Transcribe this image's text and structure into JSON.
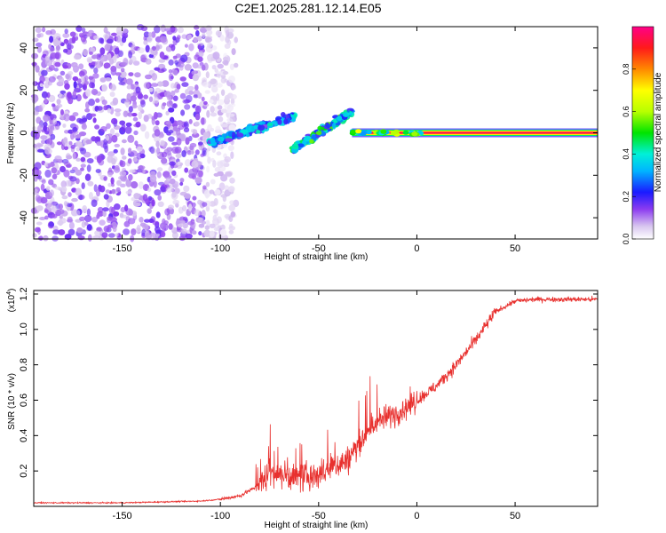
{
  "figure_title": "C2E1.2025.281.12.14.E05",
  "colors": {
    "snr_line": "#e8302e",
    "background": "#ffffff",
    "axis": "#000000"
  },
  "chart_data": [
    {
      "type": "heatmap",
      "title": "C2E1.2025.281.12.14.E05",
      "xlabel": "Height of straight line (km)",
      "ylabel": "Frequency (Hz)",
      "xlim": [
        -195,
        92
      ],
      "ylim": [
        -50,
        50
      ],
      "x_ticks": [
        -150,
        -100,
        -50,
        0,
        50
      ],
      "y_ticks": [
        -40,
        -20,
        0,
        20,
        40
      ],
      "x_tick_labels": [
        "-150",
        "-100",
        "-50",
        "0",
        "50"
      ],
      "y_tick_labels": [
        "-40",
        "-20",
        "0",
        "20",
        "40"
      ],
      "colorbar": {
        "label": "Normalized spectral amplitude",
        "range": [
          0,
          1
        ],
        "ticks": [
          0.0,
          0.2,
          0.4,
          0.6,
          0.8
        ],
        "tick_labels": [
          "0.0",
          "0.2",
          "0.4",
          "0.6",
          "0.8"
        ]
      },
      "features": [
        {
          "name": "noise field",
          "x_range": [
            -195,
            -92
          ],
          "freq_range": [
            -50,
            50
          ],
          "amplitude": 0.12
        },
        {
          "name": "cluster A",
          "x_range": [
            -106,
            -62
          ],
          "freq_start": -5,
          "freq_end": 8,
          "amplitude": 0.35
        },
        {
          "name": "cluster B",
          "x_range": [
            -63,
            -33
          ],
          "freq_start": -8,
          "freq_end": 10,
          "amplitude": 0.45
        },
        {
          "name": "continuous line",
          "x_range": [
            -33,
            92
          ],
          "freq": 0,
          "amplitude": 0.95
        }
      ]
    },
    {
      "type": "line",
      "xlabel": "Height of straight line (km)",
      "ylabel": "SNR (10 * v/v)",
      "multiplier_label": "(x10",
      "multiplier_exponent": "4",
      "multiplier_close": ")",
      "xlim": [
        -195,
        92
      ],
      "ylim": [
        0,
        1.22
      ],
      "x_ticks": [
        -150,
        -100,
        -50,
        0,
        50
      ],
      "y_ticks": [
        0.2,
        0.4,
        0.6,
        0.8,
        1.0,
        1.2
      ],
      "x_tick_labels": [
        "-150",
        "-100",
        "-50",
        "0",
        "50"
      ],
      "y_tick_labels": [
        "0.2",
        "0.4",
        "0.6",
        "0.8",
        "1.0",
        "1.2"
      ],
      "series": [
        {
          "name": "SNR",
          "x": [
            -195,
            -150,
            -110,
            -100,
            -90,
            -80,
            -75,
            -70,
            -60,
            -50,
            -40,
            -35,
            -28,
            -20,
            -10,
            0,
            10,
            20,
            30,
            40,
            45,
            50,
            60,
            70,
            80,
            92
          ],
          "y": [
            0.02,
            0.02,
            0.03,
            0.04,
            0.06,
            0.12,
            0.2,
            0.18,
            0.16,
            0.18,
            0.24,
            0.26,
            0.38,
            0.48,
            0.53,
            0.6,
            0.68,
            0.8,
            0.94,
            1.1,
            1.13,
            1.16,
            1.17,
            1.17,
            1.17,
            1.17
          ]
        }
      ]
    }
  ]
}
